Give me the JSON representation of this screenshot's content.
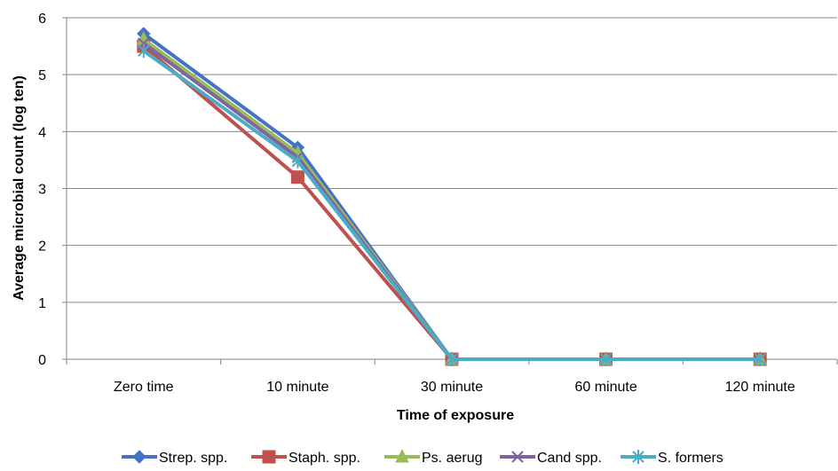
{
  "chart_data": {
    "type": "line",
    "title": "",
    "xlabel": "Time  of exposure",
    "ylabel": "Average microbial count (log ten)",
    "categories": [
      "Zero time",
      "10 minute",
      "30 minute",
      "60 minute",
      "120 minute"
    ],
    "ylim": [
      0,
      6
    ],
    "yticks": [
      "0",
      "1",
      "2",
      "3",
      "4",
      "5",
      "6"
    ],
    "grid": true,
    "legend_position": "bottom",
    "series": [
      {
        "name": "Strep. spp.",
        "color": "#4472C4",
        "marker": "diamond",
        "values": [
          5.72,
          3.72,
          0,
          0,
          0
        ]
      },
      {
        "name": "Staph. spp.",
        "color": "#C0504D",
        "marker": "square",
        "values": [
          5.5,
          3.2,
          0,
          0,
          0
        ]
      },
      {
        "name": "Ps. aerug",
        "color": "#9BBB59",
        "marker": "triangle",
        "values": [
          5.62,
          3.62,
          0,
          0,
          0
        ]
      },
      {
        "name": "Cand spp.",
        "color": "#8064A2",
        "marker": "x",
        "values": [
          5.55,
          3.55,
          0,
          0,
          0
        ]
      },
      {
        "name": "S. formers",
        "color": "#4BACC6",
        "marker": "star",
        "values": [
          5.42,
          3.48,
          0,
          0,
          0
        ]
      }
    ]
  }
}
